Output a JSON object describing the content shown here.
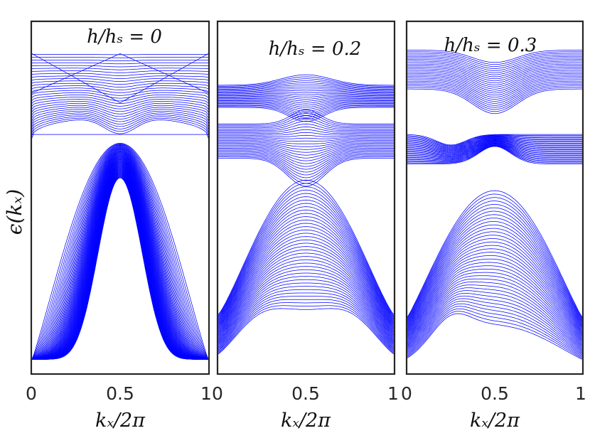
{
  "figure": {
    "ylabel": "ϵ(kₓ)",
    "line_color": "#0000ff"
  },
  "chart_data": [
    {
      "type": "line",
      "title": "h/hₛ = 0",
      "xlabel": "kₓ/2π",
      "x_ticks": [
        "0",
        "0.5",
        "1"
      ],
      "xlim": [
        0,
        1
      ],
      "ylim": [
        0,
        1
      ],
      "series_description": "~95 spin-orbit-coupled band curves plotted in blue",
      "upper_band": {
        "top": 0.91,
        "bottom_edge": 0.67,
        "center_min": 0.77
      },
      "lower_band": {
        "top": 0.67,
        "bottom": 0.02
      },
      "flat_edge_state": 0.68
    },
    {
      "type": "line",
      "title": "h/hₛ = 0.2",
      "xlabel": "kₓ/2π",
      "x_ticks": [
        "0",
        "0.5",
        "1"
      ],
      "xlim": [
        0,
        1
      ],
      "ylim": [
        0,
        1
      ],
      "series_description": "~95 band curves, gapped spectrum",
      "upper_band": {
        "top": 0.82,
        "bottom_edge": 0.73
      },
      "middle_band": {
        "top": 0.71,
        "bottom": 0.56
      },
      "lower_band": {
        "top": 0.55,
        "bottom": 0.02
      }
    },
    {
      "type": "line",
      "title": "h/hₛ = 0.3",
      "xlabel": "kₓ/2π",
      "x_ticks": [
        "0",
        "0.5",
        "1"
      ],
      "xlim": [
        0,
        1
      ],
      "ylim": [
        0,
        1
      ],
      "series_description": "~95 band curves, wider gaps",
      "upper_band": {
        "top": 0.92,
        "bottom_edge": 0.75
      },
      "middle_band": {
        "top": 0.68,
        "bottom": 0.56
      },
      "lower_band": {
        "top": 0.52,
        "bottom": 0.02
      }
    }
  ]
}
